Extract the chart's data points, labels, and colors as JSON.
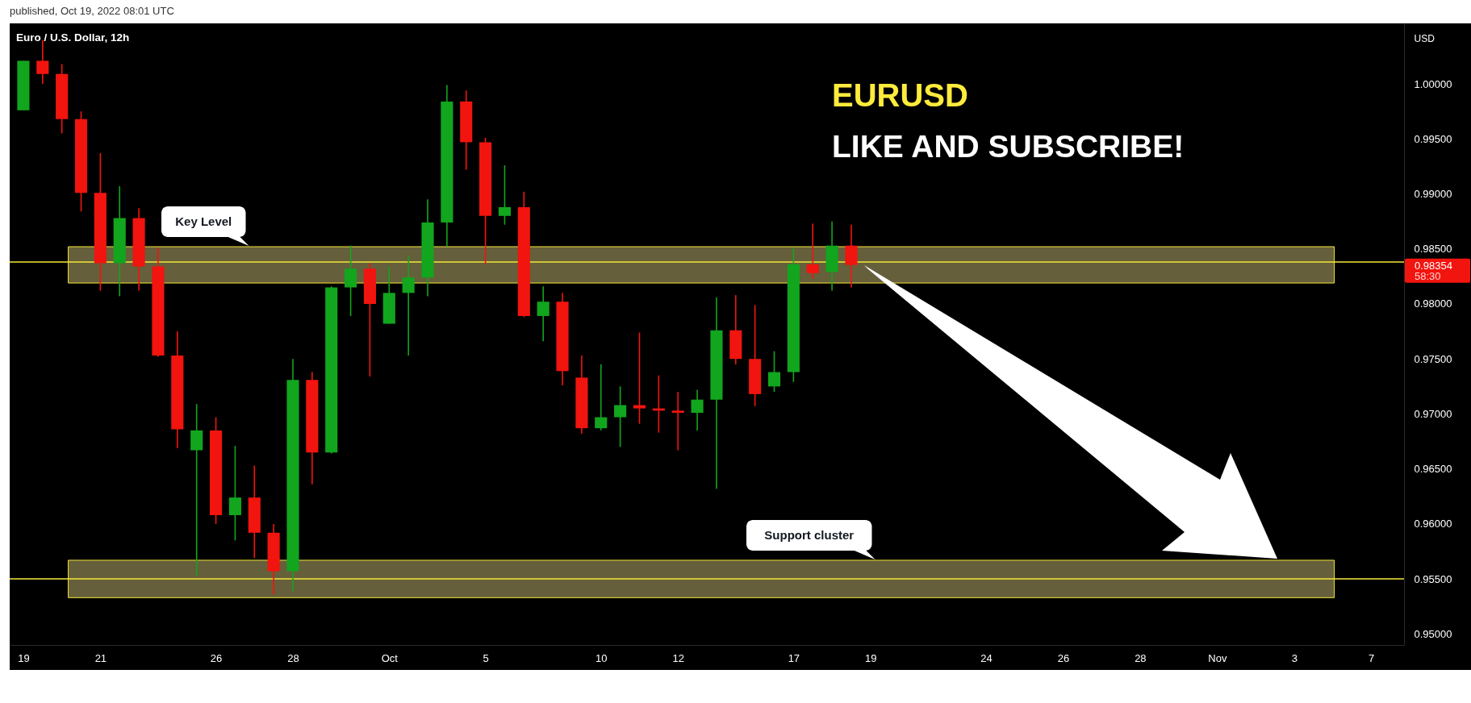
{
  "chart_data": {
    "type": "candlestick",
    "title": "Euro / U.S. Dollar, 12h",
    "ylabel": "USD",
    "categories": [
      "19",
      null,
      null,
      null,
      "21",
      null,
      null,
      null,
      null,
      null,
      "26",
      null,
      null,
      null,
      "28",
      null,
      null,
      null,
      null,
      "Oct",
      null,
      null,
      null,
      null,
      "5",
      null,
      null,
      null,
      null,
      null,
      "10",
      null,
      null,
      null,
      "12",
      null,
      null,
      null,
      null,
      null,
      "17",
      null,
      null,
      null,
      "19",
      null,
      null,
      null,
      null,
      null,
      "24",
      null,
      null,
      null,
      "26",
      null,
      null,
      null,
      "28",
      null,
      null,
      null,
      "Nov",
      null,
      null,
      null,
      "3",
      null,
      null,
      null,
      "7",
      null
    ],
    "ohlc": [
      [
        0.9976,
        1.0021,
        0.9976,
        1.0021
      ],
      [
        1.0021,
        1.004,
        1.0,
        1.0009
      ],
      [
        1.0009,
        1.0018,
        0.9955,
        0.9968
      ],
      [
        0.9968,
        0.9975,
        0.9884,
        0.9901
      ],
      [
        0.9901,
        0.9937,
        0.9812,
        0.9837
      ],
      [
        0.9837,
        0.9907,
        0.9807,
        0.9878
      ],
      [
        0.9878,
        0.9887,
        0.9812,
        0.9834
      ],
      [
        0.9834,
        0.9851,
        0.9752,
        0.9753
      ],
      [
        0.9753,
        0.9775,
        0.9669,
        0.9686
      ],
      [
        0.9667,
        0.9709,
        0.9553,
        0.9685
      ],
      [
        0.9685,
        0.9697,
        0.96,
        0.9608
      ],
      [
        0.9608,
        0.9671,
        0.9585,
        0.9624
      ],
      [
        0.9624,
        0.9653,
        0.9569,
        0.9592
      ],
      [
        0.9592,
        0.96,
        0.9536,
        0.9557
      ],
      [
        0.9557,
        0.975,
        0.9539,
        0.9731
      ],
      [
        0.9731,
        0.9738,
        0.9636,
        0.9665
      ],
      [
        0.9665,
        0.9816,
        0.9664,
        0.9815
      ],
      [
        0.9815,
        0.9853,
        0.9789,
        0.9832
      ],
      [
        0.9832,
        0.9837,
        0.9734,
        0.98
      ],
      [
        0.9782,
        0.9834,
        0.9782,
        0.981
      ],
      [
        0.981,
        0.9844,
        0.9753,
        0.9824
      ],
      [
        0.9824,
        0.9895,
        0.9807,
        0.9874
      ],
      [
        0.9874,
        0.9999,
        0.9852,
        0.9984
      ],
      [
        0.9984,
        0.9994,
        0.9922,
        0.9947
      ],
      [
        0.9947,
        0.9951,
        0.9836,
        0.988
      ],
      [
        0.988,
        0.9926,
        0.9872,
        0.9888
      ],
      [
        0.9888,
        0.9902,
        0.9788,
        0.9789
      ],
      [
        0.9789,
        0.9816,
        0.9766,
        0.9802
      ],
      [
        0.9802,
        0.981,
        0.9726,
        0.9739
      ],
      [
        0.9733,
        0.9753,
        0.9682,
        0.9687
      ],
      [
        0.9687,
        0.9745,
        0.9685,
        0.9697
      ],
      [
        0.9697,
        0.9725,
        0.967,
        0.9708
      ],
      [
        0.9708,
        0.9774,
        0.9691,
        0.9705
      ],
      [
        0.9705,
        0.9735,
        0.9683,
        0.9703
      ],
      [
        0.9703,
        0.972,
        0.9667,
        0.9701
      ],
      [
        0.9701,
        0.9722,
        0.9685,
        0.9713
      ],
      [
        0.9713,
        0.9806,
        0.9632,
        0.9776
      ],
      [
        0.9776,
        0.9808,
        0.9745,
        0.975
      ],
      [
        0.975,
        0.9799,
        0.9707,
        0.9718
      ],
      [
        0.9725,
        0.9757,
        0.972,
        0.9738
      ],
      [
        0.9738,
        0.9851,
        0.9729,
        0.9836
      ],
      [
        0.9836,
        0.9873,
        0.9823,
        0.9828
      ],
      [
        0.9829,
        0.9875,
        0.9812,
        0.9853
      ],
      [
        0.9853,
        0.9872,
        0.9815,
        0.98354
      ],
      null,
      null,
      null,
      null,
      null,
      null,
      null,
      null,
      null,
      null,
      null,
      null,
      null,
      null,
      null,
      null,
      null,
      null,
      null,
      null,
      null,
      null,
      null,
      null,
      null,
      null,
      null,
      null
    ],
    "colors": [
      "#12a51e",
      "#f2140e",
      "#f2140e",
      "#f2140e",
      "#f2140e",
      "#12a51e",
      "#f2140e",
      "#f2140e",
      "#f2140e",
      "#12a51e",
      "#f2140e",
      "#12a51e",
      "#f2140e",
      "#f2140e",
      "#12a51e",
      "#f2140e",
      "#12a51e",
      "#12a51e",
      "#f2140e",
      "#12a51e",
      "#12a51e",
      "#12a51e",
      "#12a51e",
      "#f2140e",
      "#f2140e",
      "#12a51e",
      "#f2140e",
      "#12a51e",
      "#f2140e",
      "#f2140e",
      "#12a51e",
      "#12a51e",
      "#f2140e",
      "#f2140e",
      "#f2140e",
      "#12a51e",
      "#12a51e",
      "#f2140e",
      "#f2140e",
      "#12a51e",
      "#12a51e",
      "#f2140e",
      "#12a51e",
      "#f2140e",
      null,
      null,
      null,
      null,
      null,
      null,
      null,
      null,
      null,
      null,
      null,
      null,
      null,
      null,
      null,
      null,
      null,
      null,
      null,
      null,
      null,
      null,
      null,
      null,
      null,
      null,
      null,
      null
    ],
    "ylim": [
      0.949,
      1.0055
    ],
    "yticks": [
      {
        "value": 0.95,
        "label": "0.95000"
      },
      {
        "value": 0.955,
        "label": "0.95500"
      },
      {
        "value": 0.96,
        "label": "0.96000"
      },
      {
        "value": 0.965,
        "label": "0.96500"
      },
      {
        "value": 0.97,
        "label": "0.97000"
      },
      {
        "value": 0.975,
        "label": "0.97500"
      },
      {
        "value": 0.98,
        "label": "0.98000"
      },
      {
        "value": 0.985,
        "label": "0.98500"
      },
      {
        "value": 0.99,
        "label": "0.99000"
      },
      {
        "value": 0.995,
        "label": "0.99500"
      },
      {
        "value": 1.0,
        "label": "1.00000"
      }
    ],
    "bands": [
      {
        "axis": "y",
        "from": 0.9819,
        "to": 0.9852,
        "label": "Key Level",
        "color": "#665f3b"
      },
      {
        "axis": "y",
        "from": 0.9533,
        "to": 0.9567,
        "label": "Support cluster",
        "color": "#665f3b"
      }
    ],
    "ref_lines": [
      {
        "axis": "y",
        "value": 0.9838,
        "color": "#f5e837"
      },
      {
        "axis": "y",
        "value": 0.955,
        "color": "#f5e837"
      }
    ],
    "annotations": [
      "published, Oct 19, 2022 08:01 UTC",
      "EURUSD",
      "LIKE AND SUBSCRIBE!",
      "0.98354",
      "58:30"
    ]
  }
}
